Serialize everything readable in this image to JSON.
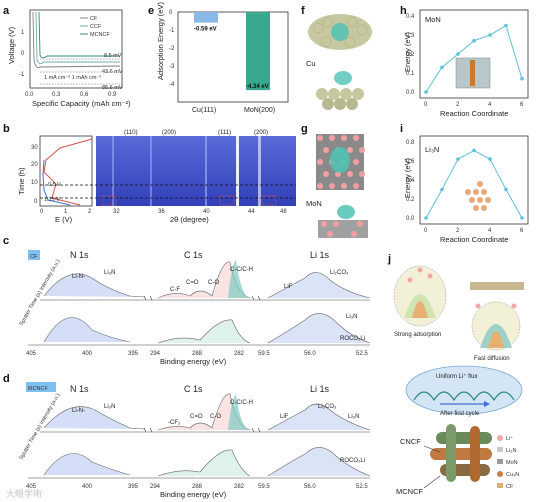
{
  "panels": {
    "a": {
      "label": "a",
      "ylabel": "Voltage (V)",
      "xlabel": "Specific Capacity (mAh cm⁻²)",
      "legend": [
        "CF",
        "CCF",
        "MCNCF"
      ],
      "legend_colors": [
        "#808080",
        "#6bb0a8",
        "#2e8a80"
      ],
      "annot": [
        "8.5 mV",
        "43.6 mV",
        "85.6 mV"
      ],
      "cond": "1 mA cm⁻²  1 mAh cm⁻²",
      "xticks": [
        "0.0",
        "0.3",
        "0.6",
        "0.9"
      ],
      "yticks": [
        "1",
        "0",
        "-1"
      ]
    },
    "b": {
      "label": "b",
      "ylabel": "Time (h)",
      "xlabel": "E (V)",
      "xlabel2": "2θ (degree)",
      "yticks": [
        "30",
        "20",
        "10",
        "0"
      ],
      "xticks": [
        "0",
        "1",
        "2"
      ],
      "xticks2": [
        "32",
        "36",
        "40",
        "44",
        "48"
      ],
      "peaks": [
        "(110)",
        "(200)",
        "(111)",
        "(200)"
      ],
      "v1": "0.5 V",
      "v2": "1.25 V"
    },
    "c": {
      "label": "c",
      "tag": "CF",
      "titles": [
        "N 1s",
        "C 1s",
        "Li 1s"
      ],
      "ylabel": "Sputter Time (s) Intensity (a.u.)",
      "xlabel": "Binding energy (eV)",
      "n_peaks": [
        "Li-N-",
        "Li₃N"
      ],
      "c_peaks": [
        "C-F",
        "C=O",
        "C-O",
        "C-C/C-H"
      ],
      "li_peaks": [
        "LiF",
        "Li₂CO₃",
        "Li₃N",
        "ROCO₂Li"
      ],
      "xticks": [
        "405",
        "400",
        "395",
        "294",
        "288",
        "282",
        "59.5",
        "56.0",
        "52.5"
      ]
    },
    "d": {
      "label": "d",
      "tag": "MCNCF",
      "titles": [
        "N 1s",
        "C 1s",
        "Li 1s"
      ],
      "ylabel": "Sputter Time (s) Intensity (a.u.)",
      "xlabel": "Binding energy (eV)",
      "n_peaks": [
        "Li-N-",
        "Li₃N"
      ],
      "c_peaks": [
        "-CF₂",
        "C=O",
        "C-O",
        "C-C/C-H"
      ],
      "li_peaks": [
        "LiF",
        "Li₂CO₃",
        "Li₃N",
        "ROCO₂Li"
      ],
      "xticks": [
        "405",
        "400",
        "395",
        "294",
        "288",
        "282",
        "59.5",
        "56.0",
        "52.5"
      ]
    },
    "e": {
      "label": "e",
      "ylabel": "Adsorption Energy (eV)",
      "yticks": [
        "0",
        "-1",
        "-2",
        "-3",
        "-4"
      ]
    },
    "f": {
      "label": "f",
      "tag": "Cu"
    },
    "g": {
      "label": "g",
      "tag": "MoN"
    },
    "h": {
      "label": "h",
      "title": "MoN",
      "ylabel": "Energy (eV)",
      "xlabel": "Reaction Coordinate",
      "yticks": [
        "0.4",
        "0.3",
        "0.2",
        "0.1",
        "0.0"
      ],
      "xticks": [
        "0",
        "2",
        "4",
        "6"
      ]
    },
    "i": {
      "label": "i",
      "title": "Li₃N",
      "ylabel": "Energy (eV)",
      "xlabel": "Reaction Coordinate",
      "yticks": [
        "0.8",
        "0.6",
        "0.4",
        "0.2",
        "0.0"
      ],
      "xticks": [
        "0",
        "2",
        "4",
        "6"
      ]
    },
    "j": {
      "label": "j",
      "strong": "Strong adsorption",
      "fast": "Fast diffusion",
      "flux": "Uniform Li⁺ flux",
      "after": "After first cycle",
      "cncf": "CNCF",
      "mcncf": "MCNCF",
      "legend": [
        "Li⁺",
        "Li₃N",
        "MoN",
        "Cu₃N",
        "CF"
      ],
      "legend_colors": [
        "#f4a6a6",
        "#c8c8c8",
        "#9a9a9a",
        "#d07a4a",
        "#d8b070"
      ]
    }
  },
  "watermark": "大眼学術",
  "chart_data": [
    {
      "type": "bar",
      "panel": "e",
      "categories": [
        "Cu(111)",
        "MoN(200)"
      ],
      "values": [
        -0.59,
        -4.34
      ],
      "data_labels": [
        "-0.59 eV",
        "-4.34 eV"
      ],
      "ylabel": "Adsorption Energy (eV)",
      "ylim": [
        0,
        -5
      ]
    },
    {
      "type": "line",
      "panel": "h",
      "title": "MoN",
      "x": [
        0,
        1,
        2,
        3,
        4,
        5,
        6
      ],
      "y": [
        0.0,
        0.13,
        0.2,
        0.27,
        0.3,
        0.35,
        0.07
      ],
      "ylabel": "Energy (eV)",
      "xlabel": "Reaction Coordinate",
      "ylim": [
        0,
        0.4
      ]
    },
    {
      "type": "line",
      "panel": "i",
      "title": "Li₃N",
      "x": [
        0,
        1,
        2,
        3,
        4,
        5,
        6
      ],
      "y": [
        0.0,
        0.3,
        0.62,
        0.71,
        0.62,
        0.3,
        0.0
      ],
      "ylabel": "Energy (eV)",
      "xlabel": "Reaction Coordinate",
      "ylim": [
        0,
        0.8
      ]
    },
    {
      "type": "line",
      "panel": "a",
      "series": [
        {
          "name": "CF",
          "color": "#808080"
        },
        {
          "name": "CCF",
          "color": "#6bb0a8"
        },
        {
          "name": "MCNCF",
          "color": "#2e8a80"
        }
      ],
      "ylabel": "Voltage (V)",
      "xlabel": "Specific Capacity (mAh cm⁻²)"
    }
  ]
}
